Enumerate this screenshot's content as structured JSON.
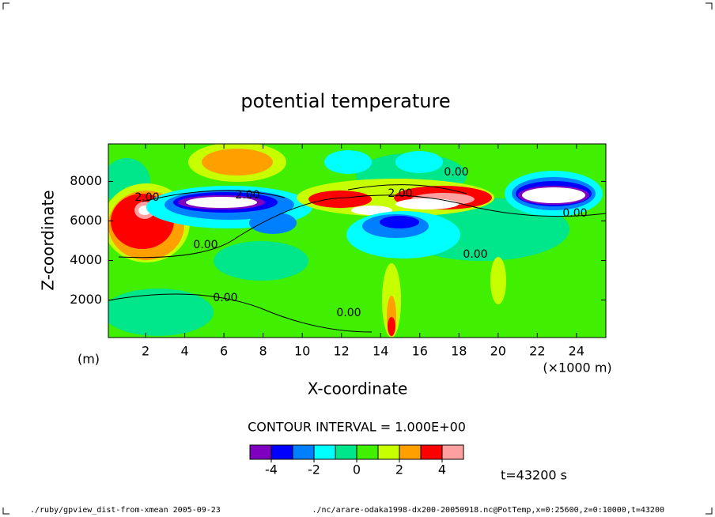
{
  "chart_data": {
    "type": "contour",
    "title": "potential temperature",
    "x_label": "X-coordinate",
    "y_label": "Z-coordinate",
    "y_unit": "(m)",
    "x_unit": "(×1000 m)",
    "xlim": [
      0.1,
      25.5
    ],
    "xticks": [
      2,
      4,
      6,
      8,
      10,
      12,
      14,
      16,
      18,
      20,
      22,
      24
    ],
    "ylim": [
      100,
      9900
    ],
    "yticks": [
      2000,
      4000,
      6000,
      8000
    ],
    "contour_interval": "CONTOUR INTERVAL = 1.000E+00",
    "levels": [
      -5,
      -4,
      -3,
      -2,
      -1,
      0,
      1,
      2,
      3,
      4,
      5
    ],
    "colors": [
      "#8000c0",
      "#0000ff",
      "#0080ff",
      "#00ffff",
      "#00e68a",
      "#40f000",
      "#c8ff00",
      "#ffa000",
      "#ff0000",
      "#ffa0a0"
    ],
    "colorbar_ticks": [
      -4,
      -2,
      0,
      2,
      4
    ],
    "contour_labels": [
      "2.00",
      "2.00",
      "2.00",
      "0.00",
      "0.00",
      "0.00",
      "0.00",
      "0.00",
      "0.00"
    ],
    "time_label": "t=43200 s",
    "footer_left": "./ruby/gpview_dist-from-xmean  2005-09-23",
    "footer_right": "./nc/arare-odaka1998-dx200-20050918.nc@PotTemp,x=0:25600,z=0:10000,t=43200"
  }
}
